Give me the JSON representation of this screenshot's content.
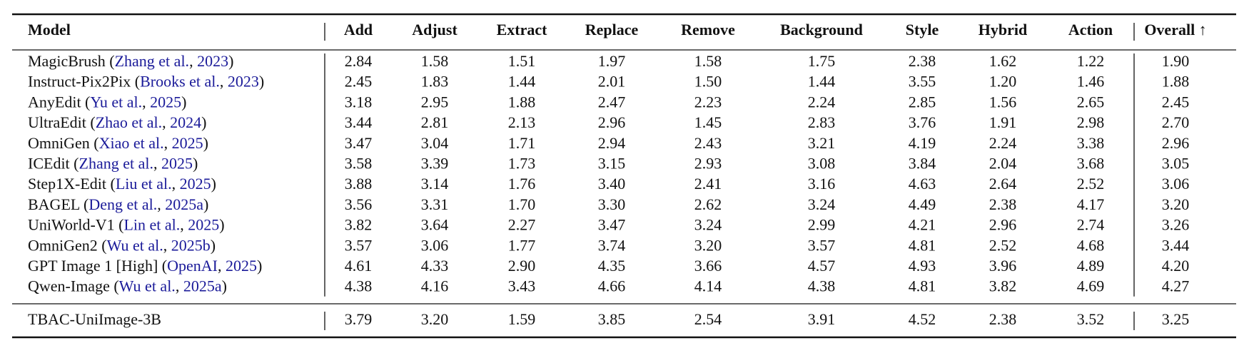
{
  "table": {
    "header": [
      "Model",
      "Add",
      "Adjust",
      "Extract",
      "Replace",
      "Remove",
      "Background",
      "Style",
      "Hybrid",
      "Action",
      "Overall ↑"
    ],
    "rows": [
      {
        "model": [
          "MagicBrush (",
          "Zhang et al.",
          ", ",
          "2023",
          ")"
        ],
        "scores": [
          "2.84",
          "1.58",
          "1.51",
          "1.97",
          "1.58",
          "1.75",
          "2.38",
          "1.62",
          "1.22",
          "1.90"
        ]
      },
      {
        "model": [
          "Instruct-Pix2Pix (",
          "Brooks et al.",
          ", ",
          "2023",
          ")"
        ],
        "scores": [
          "2.45",
          "1.83",
          "1.44",
          "2.01",
          "1.50",
          "1.44",
          "3.55",
          "1.20",
          "1.46",
          "1.88"
        ]
      },
      {
        "model": [
          "AnyEdit (",
          "Yu et al.",
          ", ",
          "2025",
          ")"
        ],
        "scores": [
          "3.18",
          "2.95",
          "1.88",
          "2.47",
          "2.23",
          "2.24",
          "2.85",
          "1.56",
          "2.65",
          "2.45"
        ]
      },
      {
        "model": [
          "UltraEdit (",
          "Zhao et al.",
          ", ",
          "2024",
          ")"
        ],
        "scores": [
          "3.44",
          "2.81",
          "2.13",
          "2.96",
          "1.45",
          "2.83",
          "3.76",
          "1.91",
          "2.98",
          "2.70"
        ]
      },
      {
        "model": [
          "OmniGen (",
          "Xiao et al.",
          ", ",
          "2025",
          ")"
        ],
        "scores": [
          "3.47",
          "3.04",
          "1.71",
          "2.94",
          "2.43",
          "3.21",
          "4.19",
          "2.24",
          "3.38",
          "2.96"
        ]
      },
      {
        "model": [
          "ICEdit (",
          "Zhang et al.",
          ", ",
          "2025",
          ")"
        ],
        "scores": [
          "3.58",
          "3.39",
          "1.73",
          "3.15",
          "2.93",
          "3.08",
          "3.84",
          "2.04",
          "3.68",
          "3.05"
        ]
      },
      {
        "model": [
          "Step1X-Edit (",
          "Liu et al.",
          ", ",
          "2025",
          ")"
        ],
        "scores": [
          "3.88",
          "3.14",
          "1.76",
          "3.40",
          "2.41",
          "3.16",
          "4.63",
          "2.64",
          "2.52",
          "3.06"
        ]
      },
      {
        "model": [
          "BAGEL (",
          "Deng et al.",
          ", ",
          "2025a",
          ")"
        ],
        "scores": [
          "3.56",
          "3.31",
          "1.70",
          "3.30",
          "2.62",
          "3.24",
          "4.49",
          "2.38",
          "4.17",
          "3.20"
        ]
      },
      {
        "model": [
          "UniWorld-V1 (",
          "Lin et al.",
          ", ",
          "2025",
          ")"
        ],
        "scores": [
          "3.82",
          "3.64",
          "2.27",
          "3.47",
          "3.24",
          "2.99",
          "4.21",
          "2.96",
          "2.74",
          "3.26"
        ]
      },
      {
        "model": [
          "OmniGen2 (",
          "Wu et al.",
          ", ",
          "2025b",
          ")"
        ],
        "scores": [
          "3.57",
          "3.06",
          "1.77",
          "3.74",
          "3.20",
          "3.57",
          "4.81",
          "2.52",
          "4.68",
          "3.44"
        ]
      },
      {
        "model": [
          "GPT Image 1 [High] (",
          "OpenAI",
          ", ",
          "2025",
          ")"
        ],
        "scores": [
          "4.61",
          "4.33",
          "2.90",
          "4.35",
          "3.66",
          "4.57",
          "4.93",
          "3.96",
          "4.89",
          "4.20"
        ]
      },
      {
        "model": [
          "Qwen-Image (",
          "Wu et al.",
          ", ",
          "2025a",
          ")"
        ],
        "scores": [
          "4.38",
          "4.16",
          "3.43",
          "4.66",
          "4.14",
          "4.38",
          "4.81",
          "3.82",
          "4.69",
          "4.27"
        ]
      }
    ],
    "final_row": {
      "model": [
        "TBAC-UniImage-3B"
      ],
      "scores": [
        "3.79",
        "3.20",
        "1.59",
        "3.85",
        "2.54",
        "3.91",
        "4.52",
        "2.38",
        "3.52",
        "3.25"
      ]
    }
  }
}
